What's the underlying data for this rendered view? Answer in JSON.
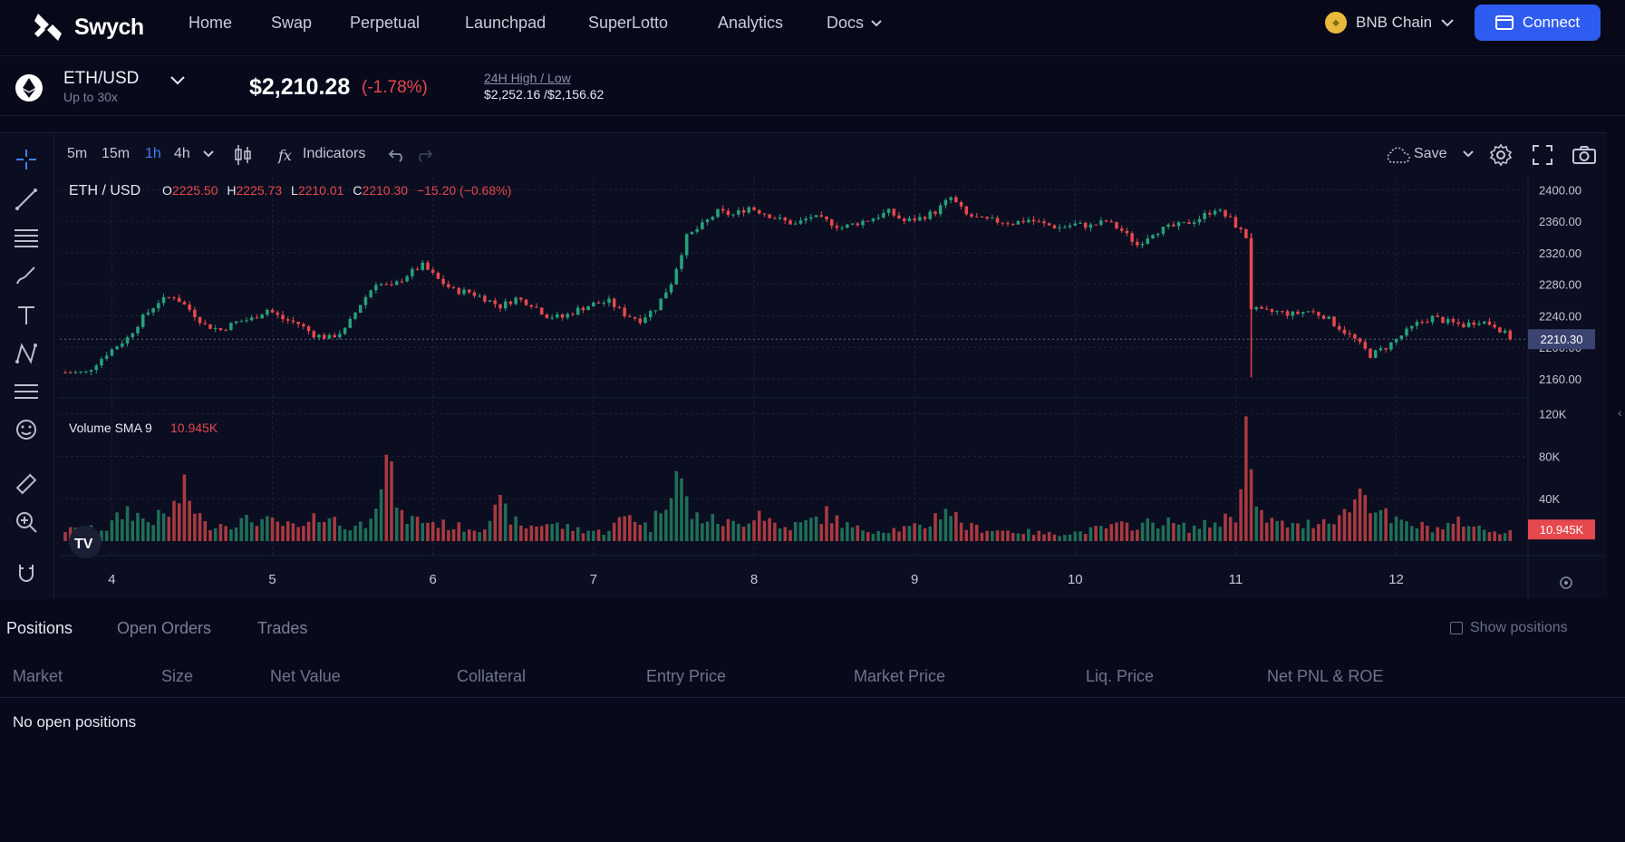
{
  "nav": {
    "brand": "Swych",
    "items": [
      "Home",
      "Swap",
      "Perpetual",
      "Launchpad",
      "SuperLotto",
      "Analytics",
      "Docs"
    ],
    "chain": "BNB Chain",
    "connect_label": "Connect"
  },
  "market": {
    "pair": "ETH/USD",
    "leverage": "Up to 30x",
    "price": "$2,210.28",
    "change": "(-1.78%)",
    "hl_label": "24H High / Low",
    "hl_value": "$2,252.16 /$2,156.62"
  },
  "toolbar": {
    "timeframes": [
      "5m",
      "15m",
      "1h",
      "4h"
    ],
    "active_timeframe": "1h",
    "indicators_label": "Indicators",
    "save_label": "Save"
  },
  "legend": {
    "symbol": "ETH / USD",
    "o_label": "O",
    "o_value": "2225.50",
    "h_label": "H",
    "h_value": "2225.73",
    "l_label": "L",
    "l_value": "2210.01",
    "c_label": "C",
    "c_value": "2210.30",
    "change": "−15.20 (−0.68%)",
    "volume_label": "Volume SMA 9",
    "volume_value": "10.945K",
    "last_price_tag": "2210.30",
    "last_volume_tag": "10.945K"
  },
  "colors": {
    "up": "#26a17b",
    "down": "#e5484d",
    "accent": "#2f5cf0",
    "bg": "#080a1c"
  },
  "chart_data": {
    "type": "candlestick",
    "price_axis": {
      "ticks": [
        2400,
        2360,
        2320,
        2280,
        2240,
        2200,
        2160
      ],
      "tick_labels": [
        "2400.00",
        "2360.00",
        "2320.00",
        "2280.00",
        "2240.00",
        "2200.00",
        "2160.00"
      ],
      "range": [
        2145,
        2405
      ]
    },
    "volume_axis": {
      "ticks": [
        120000,
        80000,
        40000
      ],
      "tick_labels": [
        "120K",
        "80K",
        "40K"
      ],
      "range": [
        0,
        130000
      ]
    },
    "x_labels": [
      "4",
      "5",
      "6",
      "7",
      "8",
      "9",
      "10",
      "11",
      "12"
    ],
    "close_path": [
      [
        0,
        2168
      ],
      [
        4,
        2168
      ],
      [
        8,
        2192
      ],
      [
        12,
        2212
      ],
      [
        15,
        2238
      ],
      [
        18,
        2258
      ],
      [
        21,
        2265
      ],
      [
        24,
        2248
      ],
      [
        27,
        2228
      ],
      [
        30,
        2222
      ],
      [
        33,
        2232
      ],
      [
        36,
        2236
      ],
      [
        39,
        2248
      ],
      [
        42,
        2236
      ],
      [
        45,
        2230
      ],
      [
        48,
        2216
      ],
      [
        51,
        2212
      ],
      [
        54,
        2222
      ],
      [
        57,
        2255
      ],
      [
        60,
        2282
      ],
      [
        63,
        2276
      ],
      [
        66,
        2292
      ],
      [
        69,
        2304
      ],
      [
        72,
        2286
      ],
      [
        75,
        2272
      ],
      [
        78,
        2270
      ],
      [
        81,
        2262
      ],
      [
        84,
        2252
      ],
      [
        87,
        2262
      ],
      [
        90,
        2255
      ],
      [
        93,
        2240
      ],
      [
        96,
        2238
      ],
      [
        99,
        2248
      ],
      [
        102,
        2255
      ],
      [
        105,
        2258
      ],
      [
        108,
        2242
      ],
      [
        111,
        2235
      ],
      [
        114,
        2250
      ],
      [
        117,
        2282
      ],
      [
        120,
        2340
      ],
      [
        123,
        2355
      ],
      [
        126,
        2372
      ],
      [
        129,
        2368
      ],
      [
        132,
        2378
      ],
      [
        135,
        2370
      ],
      [
        138,
        2362
      ],
      [
        141,
        2356
      ],
      [
        144,
        2366
      ],
      [
        147,
        2360
      ],
      [
        150,
        2352
      ],
      [
        153,
        2358
      ],
      [
        156,
        2364
      ],
      [
        159,
        2372
      ],
      [
        162,
        2360
      ],
      [
        165,
        2364
      ],
      [
        168,
        2372
      ],
      [
        171,
        2390
      ],
      [
        174,
        2368
      ],
      [
        177,
        2362
      ],
      [
        180,
        2360
      ],
      [
        183,
        2358
      ],
      [
        186,
        2362
      ],
      [
        189,
        2356
      ],
      [
        192,
        2352
      ],
      [
        195,
        2356
      ],
      [
        198,
        2354
      ],
      [
        201,
        2360
      ],
      [
        204,
        2348
      ],
      [
        207,
        2330
      ],
      [
        210,
        2346
      ],
      [
        213,
        2352
      ],
      [
        216,
        2356
      ],
      [
        219,
        2364
      ],
      [
        222,
        2376
      ],
      [
        225,
        2362
      ],
      [
        228,
        2340
      ],
      [
        229,
        2250
      ],
      [
        231,
        2245
      ],
      [
        234,
        2245
      ],
      [
        237,
        2242
      ],
      [
        240,
        2246
      ],
      [
        243,
        2240
      ],
      [
        246,
        2225
      ],
      [
        249,
        2210
      ],
      [
        252,
        2190
      ],
      [
        255,
        2200
      ],
      [
        258,
        2215
      ],
      [
        261,
        2230
      ],
      [
        264,
        2238
      ],
      [
        267,
        2232
      ],
      [
        270,
        2228
      ],
      [
        273,
        2234
      ],
      [
        276,
        2228
      ],
      [
        279,
        2212
      ]
    ],
    "volume_path": [
      [
        0,
        12000
      ],
      [
        8,
        14000
      ],
      [
        12,
        35000
      ],
      [
        16,
        22000
      ],
      [
        20,
        30000
      ],
      [
        23,
        55000
      ],
      [
        27,
        18000
      ],
      [
        32,
        20000
      ],
      [
        37,
        24000
      ],
      [
        42,
        18000
      ],
      [
        46,
        14000
      ],
      [
        50,
        32000
      ],
      [
        54,
        14000
      ],
      [
        58,
        20000
      ],
      [
        62,
        88000
      ],
      [
        65,
        26000
      ],
      [
        70,
        22000
      ],
      [
        75,
        16000
      ],
      [
        80,
        14000
      ],
      [
        84,
        38000
      ],
      [
        88,
        15000
      ],
      [
        93,
        20000
      ],
      [
        98,
        14000
      ],
      [
        104,
        10000
      ],
      [
        109,
        30000
      ],
      [
        113,
        14000
      ],
      [
        118,
        78000
      ],
      [
        121,
        28000
      ],
      [
        126,
        22000
      ],
      [
        130,
        18000
      ],
      [
        134,
        34000
      ],
      [
        138,
        14000
      ],
      [
        143,
        20000
      ],
      [
        147,
        30000
      ],
      [
        152,
        14000
      ],
      [
        157,
        12000
      ],
      [
        162,
        14000
      ],
      [
        166,
        16000
      ],
      [
        170,
        38000
      ],
      [
        174,
        16000
      ],
      [
        180,
        12000
      ],
      [
        186,
        10000
      ],
      [
        190,
        8000
      ],
      [
        196,
        10000
      ],
      [
        202,
        16000
      ],
      [
        207,
        18000
      ],
      [
        212,
        22000
      ],
      [
        217,
        14000
      ],
      [
        222,
        20000
      ],
      [
        226,
        30000
      ],
      [
        228,
        123000
      ],
      [
        230,
        30000
      ],
      [
        234,
        20000
      ],
      [
        238,
        16000
      ],
      [
        243,
        24000
      ],
      [
        247,
        30000
      ],
      [
        250,
        56000
      ],
      [
        253,
        40000
      ],
      [
        256,
        22000
      ],
      [
        260,
        18000
      ],
      [
        265,
        14000
      ],
      [
        270,
        22000
      ],
      [
        274,
        12000
      ],
      [
        279,
        10945
      ]
    ],
    "candle_count": 280
  },
  "positions": {
    "tabs": [
      "Positions",
      "Open Orders",
      "Trades"
    ],
    "show_positions_label": "Show positions",
    "columns": [
      "Market",
      "Size",
      "Net Value",
      "Collateral",
      "Entry Price",
      "Market Price",
      "Liq. Price",
      "Net PNL & ROE"
    ],
    "empty_text": "No open positions"
  }
}
